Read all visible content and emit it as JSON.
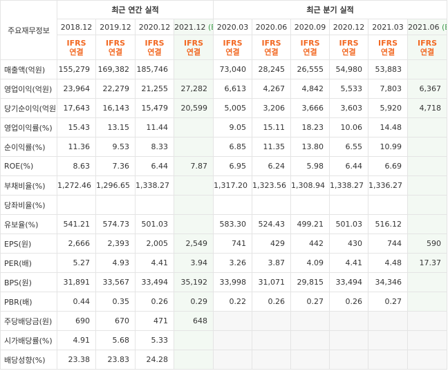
{
  "table": {
    "corner_label": "주요재무정보",
    "annual_title": "최근 연간 실적",
    "quarterly_title": "최근 분기 실적",
    "estimate_mark": "(E)",
    "annual_periods": [
      {
        "label": "2018.12",
        "estimate": false,
        "basis_top": "IFRS",
        "basis_bottom": "연결"
      },
      {
        "label": "2019.12",
        "estimate": false,
        "basis_top": "IFRS",
        "basis_bottom": "연결"
      },
      {
        "label": "2020.12",
        "estimate": false,
        "basis_top": "IFRS",
        "basis_bottom": "연결"
      },
      {
        "label": "2021.12",
        "estimate": true,
        "basis_top": "IFRS",
        "basis_bottom": "연결"
      }
    ],
    "quarterly_periods": [
      {
        "label": "2020.03",
        "estimate": false,
        "basis_top": "IFRS",
        "basis_bottom": "연결"
      },
      {
        "label": "2020.06",
        "estimate": false,
        "basis_top": "IFRS",
        "basis_bottom": "연결"
      },
      {
        "label": "2020.09",
        "estimate": false,
        "basis_top": "IFRS",
        "basis_bottom": "연결"
      },
      {
        "label": "2020.12",
        "estimate": false,
        "basis_top": "IFRS",
        "basis_bottom": "연결"
      },
      {
        "label": "2021.03",
        "estimate": false,
        "basis_top": "IFRS",
        "basis_bottom": "연결"
      },
      {
        "label": "2021.06",
        "estimate": true,
        "basis_top": "IFRS",
        "basis_bottom": "연결"
      }
    ],
    "rows": [
      {
        "label": "매출액(억원)",
        "section_start": true,
        "annual": [
          "155,279",
          "169,382",
          "185,746",
          ""
        ],
        "quarterly": [
          "73,040",
          "28,245",
          "26,555",
          "54,980",
          "53,883",
          ""
        ]
      },
      {
        "label": "영업이익(억원)",
        "section_start": false,
        "annual": [
          "23,964",
          "22,279",
          "21,255",
          "27,282"
        ],
        "quarterly": [
          "6,613",
          "4,267",
          "4,842",
          "5,533",
          "7,803",
          "6,367"
        ]
      },
      {
        "label": "당기순이익(억원)",
        "section_start": false,
        "annual": [
          "17,643",
          "16,143",
          "15,479",
          "20,599"
        ],
        "quarterly": [
          "5,005",
          "3,206",
          "3,666",
          "3,603",
          "5,920",
          "4,718"
        ]
      },
      {
        "label": "영업이익률(%)",
        "section_start": true,
        "annual": [
          "15.43",
          "13.15",
          "11.44",
          ""
        ],
        "quarterly": [
          "9.05",
          "15.11",
          "18.23",
          "10.06",
          "14.48",
          ""
        ]
      },
      {
        "label": "순이익률(%)",
        "section_start": false,
        "annual": [
          "11.36",
          "9.53",
          "8.33",
          ""
        ],
        "quarterly": [
          "6.85",
          "11.35",
          "13.80",
          "6.55",
          "10.99",
          ""
        ]
      },
      {
        "label": "ROE(%)",
        "section_start": false,
        "annual": [
          "8.63",
          "7.36",
          "6.44",
          "7.87"
        ],
        "quarterly": [
          "6.95",
          "6.24",
          "5.98",
          "6.44",
          "6.69",
          ""
        ]
      },
      {
        "label": "부채비율(%)",
        "section_start": true,
        "annual": [
          "1,272.46",
          "1,296.65",
          "1,338.27",
          ""
        ],
        "quarterly": [
          "1,317.20",
          "1,323.56",
          "1,308.94",
          "1,338.27",
          "1,336.27",
          ""
        ]
      },
      {
        "label": "당좌비율(%)",
        "section_start": false,
        "annual": [
          "",
          "",
          "",
          ""
        ],
        "quarterly": [
          "",
          "",
          "",
          "",
          "",
          ""
        ]
      },
      {
        "label": "유보율(%)",
        "section_start": false,
        "annual": [
          "541.21",
          "574.73",
          "501.03",
          ""
        ],
        "quarterly": [
          "583.30",
          "524.43",
          "499.21",
          "501.03",
          "516.12",
          ""
        ]
      },
      {
        "label": "EPS(원)",
        "section_start": true,
        "annual": [
          "2,666",
          "2,393",
          "2,005",
          "2,549"
        ],
        "quarterly": [
          "741",
          "429",
          "442",
          "430",
          "744",
          "590"
        ]
      },
      {
        "label": "PER(배)",
        "section_start": false,
        "annual": [
          "5.27",
          "4.93",
          "4.41",
          "3.94"
        ],
        "quarterly": [
          "3.26",
          "3.87",
          "4.09",
          "4.41",
          "4.48",
          "17.37"
        ]
      },
      {
        "label": "BPS(원)",
        "section_start": false,
        "annual": [
          "31,891",
          "33,567",
          "33,494",
          "35,192"
        ],
        "quarterly": [
          "33,998",
          "31,071",
          "29,815",
          "33,494",
          "34,346",
          ""
        ]
      },
      {
        "label": "PBR(배)",
        "section_start": false,
        "annual": [
          "0.44",
          "0.35",
          "0.26",
          "0.29"
        ],
        "quarterly": [
          "0.22",
          "0.26",
          "0.27",
          "0.26",
          "0.27",
          ""
        ]
      },
      {
        "label": "주당배당금(원)",
        "section_start": true,
        "quarterly_na": true,
        "annual": [
          "690",
          "670",
          "471",
          "648"
        ],
        "quarterly": [
          "",
          "",
          "",
          "",
          "",
          ""
        ]
      },
      {
        "label": "시가배당률(%)",
        "section_start": false,
        "quarterly_na": true,
        "annual": [
          "4.91",
          "5.68",
          "5.33",
          ""
        ],
        "quarterly": [
          "",
          "",
          "",
          "",
          "",
          ""
        ]
      },
      {
        "label": "배당성향(%)",
        "section_start": false,
        "quarterly_na": true,
        "annual": [
          "23.38",
          "23.83",
          "24.28",
          ""
        ],
        "quarterly": [
          "",
          "",
          "",
          "",
          "",
          ""
        ]
      }
    ]
  }
}
